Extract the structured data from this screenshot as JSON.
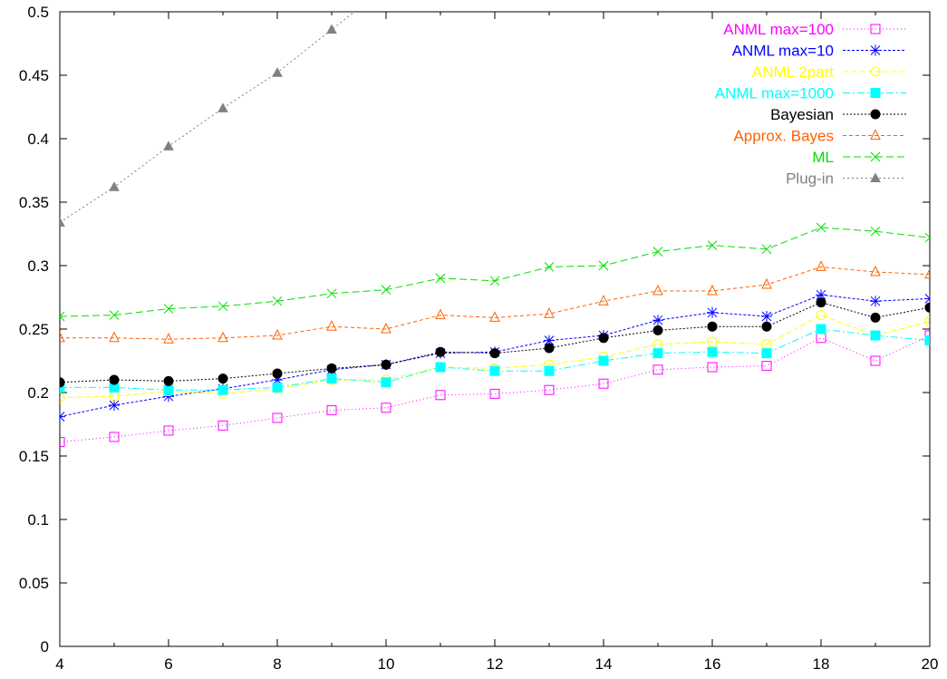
{
  "chart_data": {
    "type": "line",
    "x": [
      4,
      5,
      6,
      7,
      8,
      9,
      10,
      11,
      12,
      13,
      14,
      15,
      16,
      17,
      18,
      19,
      20
    ],
    "xlim": [
      4,
      20
    ],
    "ylim": [
      0,
      0.5
    ],
    "xticks": [
      "4",
      "6",
      "8",
      "10",
      "12",
      "14",
      "16",
      "18",
      "20"
    ],
    "yticks": [
      "0",
      "0.05",
      "0.1",
      "0.15",
      "0.2",
      "0.25",
      "0.3",
      "0.35",
      "0.4",
      "0.45",
      "0.5"
    ],
    "grid": false,
    "legend_position": "top-right",
    "series": [
      {
        "name": "ANML max=100",
        "color": "#ff00ff",
        "marker": "open-square",
        "dash": "1,3",
        "values": [
          0.161,
          0.165,
          0.17,
          0.174,
          0.18,
          0.186,
          0.188,
          0.198,
          0.199,
          0.202,
          0.207,
          0.218,
          0.22,
          0.221,
          0.243,
          0.225,
          0.245
        ]
      },
      {
        "name": "ANML max=10",
        "color": "#0000ff",
        "marker": "asterisk",
        "dash": "3,2",
        "values": [
          0.181,
          0.19,
          0.197,
          0.203,
          0.21,
          0.218,
          0.222,
          0.231,
          0.232,
          0.241,
          0.245,
          0.257,
          0.263,
          0.26,
          0.277,
          0.272,
          0.274
        ]
      },
      {
        "name": "ANML 2part",
        "color": "#ffff00",
        "marker": "open-circle",
        "dash": "6,3",
        "values": [
          0.196,
          0.197,
          0.201,
          0.199,
          0.203,
          0.21,
          0.21,
          0.22,
          0.219,
          0.222,
          0.228,
          0.238,
          0.24,
          0.238,
          0.261,
          0.245,
          0.256
        ]
      },
      {
        "name": "ANML max=1000",
        "color": "#00ffff",
        "marker": "filled-square",
        "dash": "8,3,2,3",
        "values": [
          0.204,
          0.204,
          0.202,
          0.202,
          0.204,
          0.211,
          0.208,
          0.22,
          0.217,
          0.217,
          0.225,
          0.231,
          0.232,
          0.231,
          0.25,
          0.245,
          0.241
        ]
      },
      {
        "name": "Bayesian",
        "color": "#000000",
        "marker": "filled-circle",
        "dash": "2,2",
        "values": [
          0.208,
          0.21,
          0.209,
          0.211,
          0.215,
          0.219,
          0.222,
          0.232,
          0.231,
          0.235,
          0.243,
          0.249,
          0.252,
          0.252,
          0.271,
          0.259,
          0.267
        ]
      },
      {
        "name": "Approx. Bayes",
        "color": "#ff6000",
        "marker": "open-triangle",
        "dash": "4,3",
        "values": [
          0.243,
          0.243,
          0.242,
          0.243,
          0.245,
          0.252,
          0.25,
          0.261,
          0.259,
          0.262,
          0.272,
          0.28,
          0.28,
          0.285,
          0.299,
          0.295,
          0.293
        ]
      },
      {
        "name": "ML",
        "color": "#00e000",
        "marker": "x",
        "dash": "8,4",
        "values": [
          0.26,
          0.261,
          0.266,
          0.268,
          0.272,
          0.278,
          0.281,
          0.29,
          0.288,
          0.299,
          0.3,
          0.311,
          0.316,
          0.313,
          0.33,
          0.327,
          0.322
        ]
      },
      {
        "name": "Plug-in",
        "color": "#808080",
        "marker": "filled-triangle",
        "dash": "2,3",
        "values": [
          0.334,
          0.362,
          0.394,
          0.424,
          0.452,
          0.486,
          0.519,
          null,
          null,
          null,
          null,
          null,
          null,
          null,
          null,
          null,
          null
        ]
      }
    ]
  }
}
